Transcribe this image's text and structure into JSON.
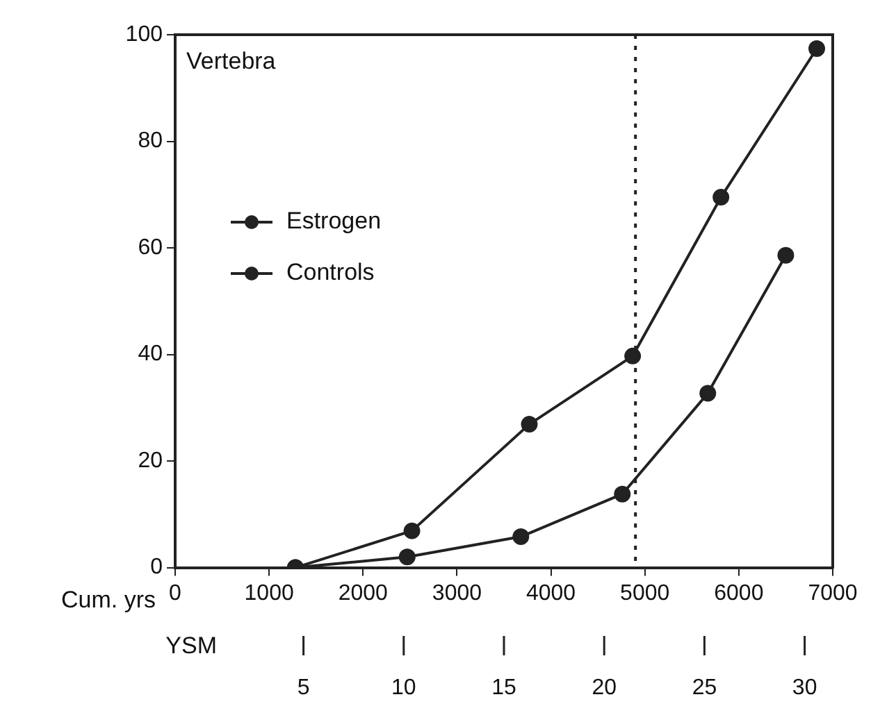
{
  "chart_data": {
    "type": "line",
    "xlabel": "Cum. yrs",
    "x2label": "YSM",
    "xlim": [
      0,
      7000
    ],
    "xticks": [
      0,
      1000,
      2000,
      3000,
      4000,
      5000,
      6000,
      7000
    ],
    "x2lim": [
      -1.4,
      31.4
    ],
    "x2ticks": [
      5,
      10,
      15,
      20,
      25,
      30
    ],
    "ylim": [
      0,
      100
    ],
    "yticks": [
      0,
      20,
      40,
      60,
      80,
      100
    ],
    "series": [
      {
        "name": "Estrogen",
        "color": "#222222",
        "x": [
          1280,
          2470,
          3680,
          4760,
          5670,
          6500
        ],
        "values": [
          0,
          2,
          5.8,
          13.8,
          32.7,
          58.6
        ]
      },
      {
        "name": "Controls",
        "color": "#222222",
        "x": [
          1280,
          2520,
          3770,
          4870,
          5810,
          6830
        ],
        "values": [
          0,
          6.9,
          26.9,
          39.7,
          69.5,
          97.4
        ]
      }
    ],
    "ref_lines": [
      {
        "axis": "x",
        "value": 4900,
        "color": "#222222",
        "line_style": "dotted"
      }
    ],
    "annotations": [
      "Vertebra"
    ],
    "legend": "left",
    "marker": "circle",
    "line_style": "solid",
    "grid": false
  }
}
